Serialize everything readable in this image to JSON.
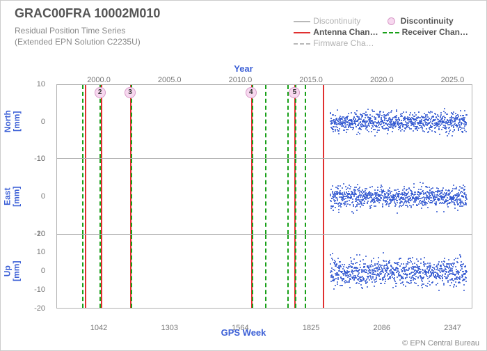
{
  "title": "GRAC00FRA 10002M010",
  "subtitle_line1": "Residual Position Time Series",
  "subtitle_line2": "(Extended EPN Solution C2235U)",
  "credit": "© EPN Central Bureau",
  "colors": {
    "accent_blue": "#3b5fd6",
    "text_gray": "#666666",
    "light_gray": "#bfbfbf",
    "disc_gray": "#b8b8b8",
    "disc_pink_fill": "#f7d8ef",
    "disc_pink_border": "#d89bc8",
    "antenna_red": "#e03030",
    "receiver_green": "#18a018",
    "firmware_gray": "#b8b8b8",
    "scatter_blue": "#2f55d0",
    "plot_border": "#b0b0b0"
  },
  "legend": {
    "items": [
      {
        "id": "disc-line",
        "label": "Discontinuity",
        "kind": "line",
        "style": "solid",
        "colorKey": "disc_gray",
        "faded": true
      },
      {
        "id": "disc-dot",
        "label": "Discontinuity",
        "kind": "dot",
        "fillKey": "disc_pink_fill",
        "borderKey": "disc_pink_border",
        "faded": false
      },
      {
        "id": "antenna",
        "label": "Antenna Chan…",
        "kind": "line",
        "style": "solid",
        "colorKey": "antenna_red",
        "faded": false
      },
      {
        "id": "receiver",
        "label": "Receiver Chan…",
        "kind": "line",
        "style": "dashed",
        "colorKey": "receiver_green",
        "faded": false
      },
      {
        "id": "firmware",
        "label": "Firmware Cha…",
        "kind": "line",
        "style": "dashed",
        "colorKey": "firmware_gray",
        "faded": true
      }
    ]
  },
  "topAxis": {
    "label": "Year",
    "ticks": [
      "2000.0",
      "2005.0",
      "2010.0",
      "2015.0",
      "2020.0",
      "2025.0"
    ],
    "tick_values": [
      2000,
      2005,
      2010,
      2015,
      2020,
      2025
    ]
  },
  "bottomAxis": {
    "label": "GPS Week",
    "ticks": [
      "1042",
      "1303",
      "1564",
      "1825",
      "2086",
      "2347"
    ],
    "tick_values": [
      1042,
      1303,
      1564,
      1825,
      2086,
      2347
    ]
  },
  "x_domain_year": [
    1997.0,
    2026.5
  ],
  "panels": [
    {
      "id": "north",
      "label_top": "North",
      "label_bot": "[mm]",
      "ymin": -10,
      "ymax": 10,
      "yticks": [
        -10,
        0,
        10
      ],
      "noise_amp": 3.0,
      "border": "all"
    },
    {
      "id": "east",
      "label_top": "East",
      "label_bot": "[mm]",
      "ymin": -10,
      "ymax": 10,
      "yticks": [
        -10,
        0,
        10
      ],
      "noise_amp": 3.0,
      "border": "side"
    },
    {
      "id": "up",
      "label_top": "Up",
      "label_bot": "[mm]",
      "ymin": -20,
      "ymax": 20,
      "yticks": [
        -20,
        -10,
        0,
        10,
        20
      ],
      "noise_amp": 8.0,
      "border": "all"
    }
  ],
  "scatter": {
    "year_start": 2016.4,
    "year_end": 2026.1,
    "density_per_year": 90,
    "colorKey": "scatter_blue"
  },
  "events": [
    {
      "year": 1998.8,
      "type": "receiver"
    },
    {
      "year": 1999.0,
      "type": "antenna"
    },
    {
      "year": 2000.0,
      "type": "receiver"
    },
    {
      "year": 2000.1,
      "type": "antenna"
    },
    {
      "year": 2002.2,
      "type": "antenna"
    },
    {
      "year": 2002.25,
      "type": "receiver"
    },
    {
      "year": 2010.8,
      "type": "antenna"
    },
    {
      "year": 2010.85,
      "type": "receiver"
    },
    {
      "year": 2011.8,
      "type": "receiver"
    },
    {
      "year": 2013.4,
      "type": "receiver"
    },
    {
      "year": 2013.9,
      "type": "antenna"
    },
    {
      "year": 2013.95,
      "type": "receiver"
    },
    {
      "year": 2014.6,
      "type": "receiver"
    },
    {
      "year": 2015.9,
      "type": "antenna"
    }
  ],
  "disc_markers": [
    {
      "year": 2000.05,
      "label": "2"
    },
    {
      "year": 2002.2,
      "label": "3"
    },
    {
      "year": 2010.8,
      "label": "4"
    },
    {
      "year": 2013.9,
      "label": "5"
    }
  ]
}
